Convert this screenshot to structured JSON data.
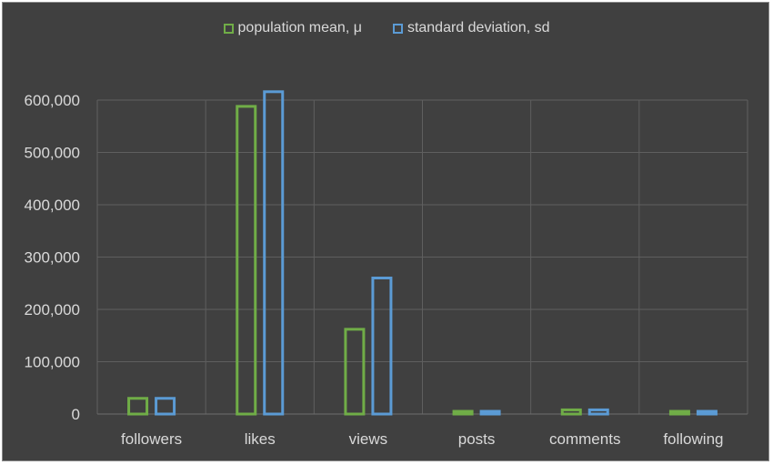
{
  "chart_data": {
    "type": "bar",
    "categories": [
      "followers",
      "likes",
      "views",
      "posts",
      "comments",
      "following"
    ],
    "series": [
      {
        "name": "population mean, μ",
        "values": [
          30000,
          588000,
          162000,
          4000,
          8000,
          4000
        ],
        "color": "#70ad47"
      },
      {
        "name": "standard deviation, sd",
        "values": [
          30000,
          616000,
          260000,
          5000,
          8000,
          5000
        ],
        "color": "#5b9bd5"
      }
    ],
    "y_ticks": [
      "0",
      "100,000",
      "200,000",
      "300,000",
      "400,000",
      "500,000",
      "600,000"
    ],
    "ylim": [
      0,
      600000
    ],
    "grid": true,
    "legend_position": "top",
    "bar_style": "outline"
  }
}
